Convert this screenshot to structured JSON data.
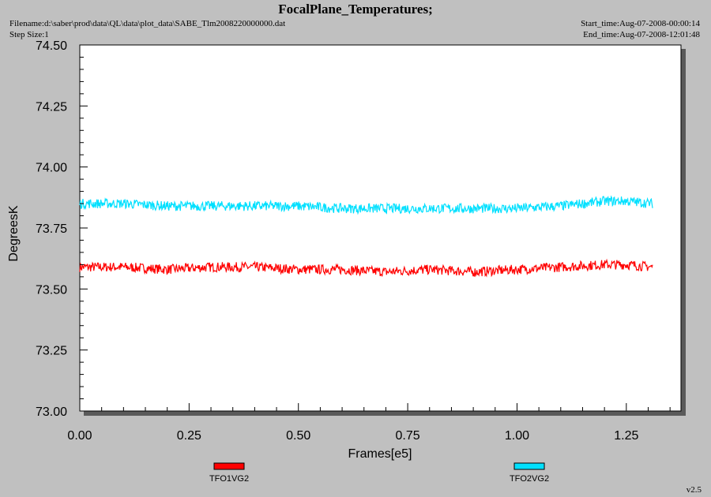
{
  "header": {
    "title": "FocalPlane_Temperatures;",
    "filename": "Filename:d:\\saber\\prod\\data\\QL\\data\\plot_data\\SABE_Tlm2008220000000.dat",
    "step_size": "Step Size:1",
    "start_time": "Start_time:Aug-07-2008-00:00:14",
    "end_time": "End_time:Aug-07-2008-12:01:48"
  },
  "footer": {
    "version": "v2.5"
  },
  "colors": {
    "series1": "#ff0000",
    "series2": "#00e0ff",
    "plot_bg": "#ffffff",
    "page_bg": "#c0c0c0"
  },
  "chart_data": {
    "type": "line",
    "title": "FocalPlane_Temperatures;",
    "xlabel": "Frames[e5]",
    "ylabel": "DegreesK",
    "xlim": [
      0.0,
      1.375
    ],
    "ylim": [
      73.0,
      74.5
    ],
    "x_ticks": [
      "0.00",
      "0.25",
      "0.50",
      "0.75",
      "1.00",
      "1.25"
    ],
    "y_ticks": [
      "73.00",
      "73.25",
      "73.50",
      "73.75",
      "74.00",
      "74.25",
      "74.50"
    ],
    "grid": false,
    "legend_position": "bottom",
    "x": [
      0.0,
      0.1,
      0.2,
      0.3,
      0.4,
      0.5,
      0.6,
      0.7,
      0.8,
      0.9,
      1.0,
      1.1,
      1.2,
      1.25,
      1.31
    ],
    "series": [
      {
        "name": "TFO1VG2",
        "values": [
          73.59,
          73.59,
          73.58,
          73.59,
          73.59,
          73.58,
          73.58,
          73.57,
          73.58,
          73.57,
          73.58,
          73.59,
          73.6,
          73.6,
          73.59
        ],
        "noise_range": 0.04
      },
      {
        "name": "TFO2VG2",
        "values": [
          73.85,
          73.85,
          73.84,
          73.84,
          73.84,
          73.84,
          73.83,
          73.83,
          73.83,
          73.83,
          73.83,
          73.84,
          73.86,
          73.86,
          73.85
        ],
        "noise_range": 0.04
      }
    ]
  }
}
